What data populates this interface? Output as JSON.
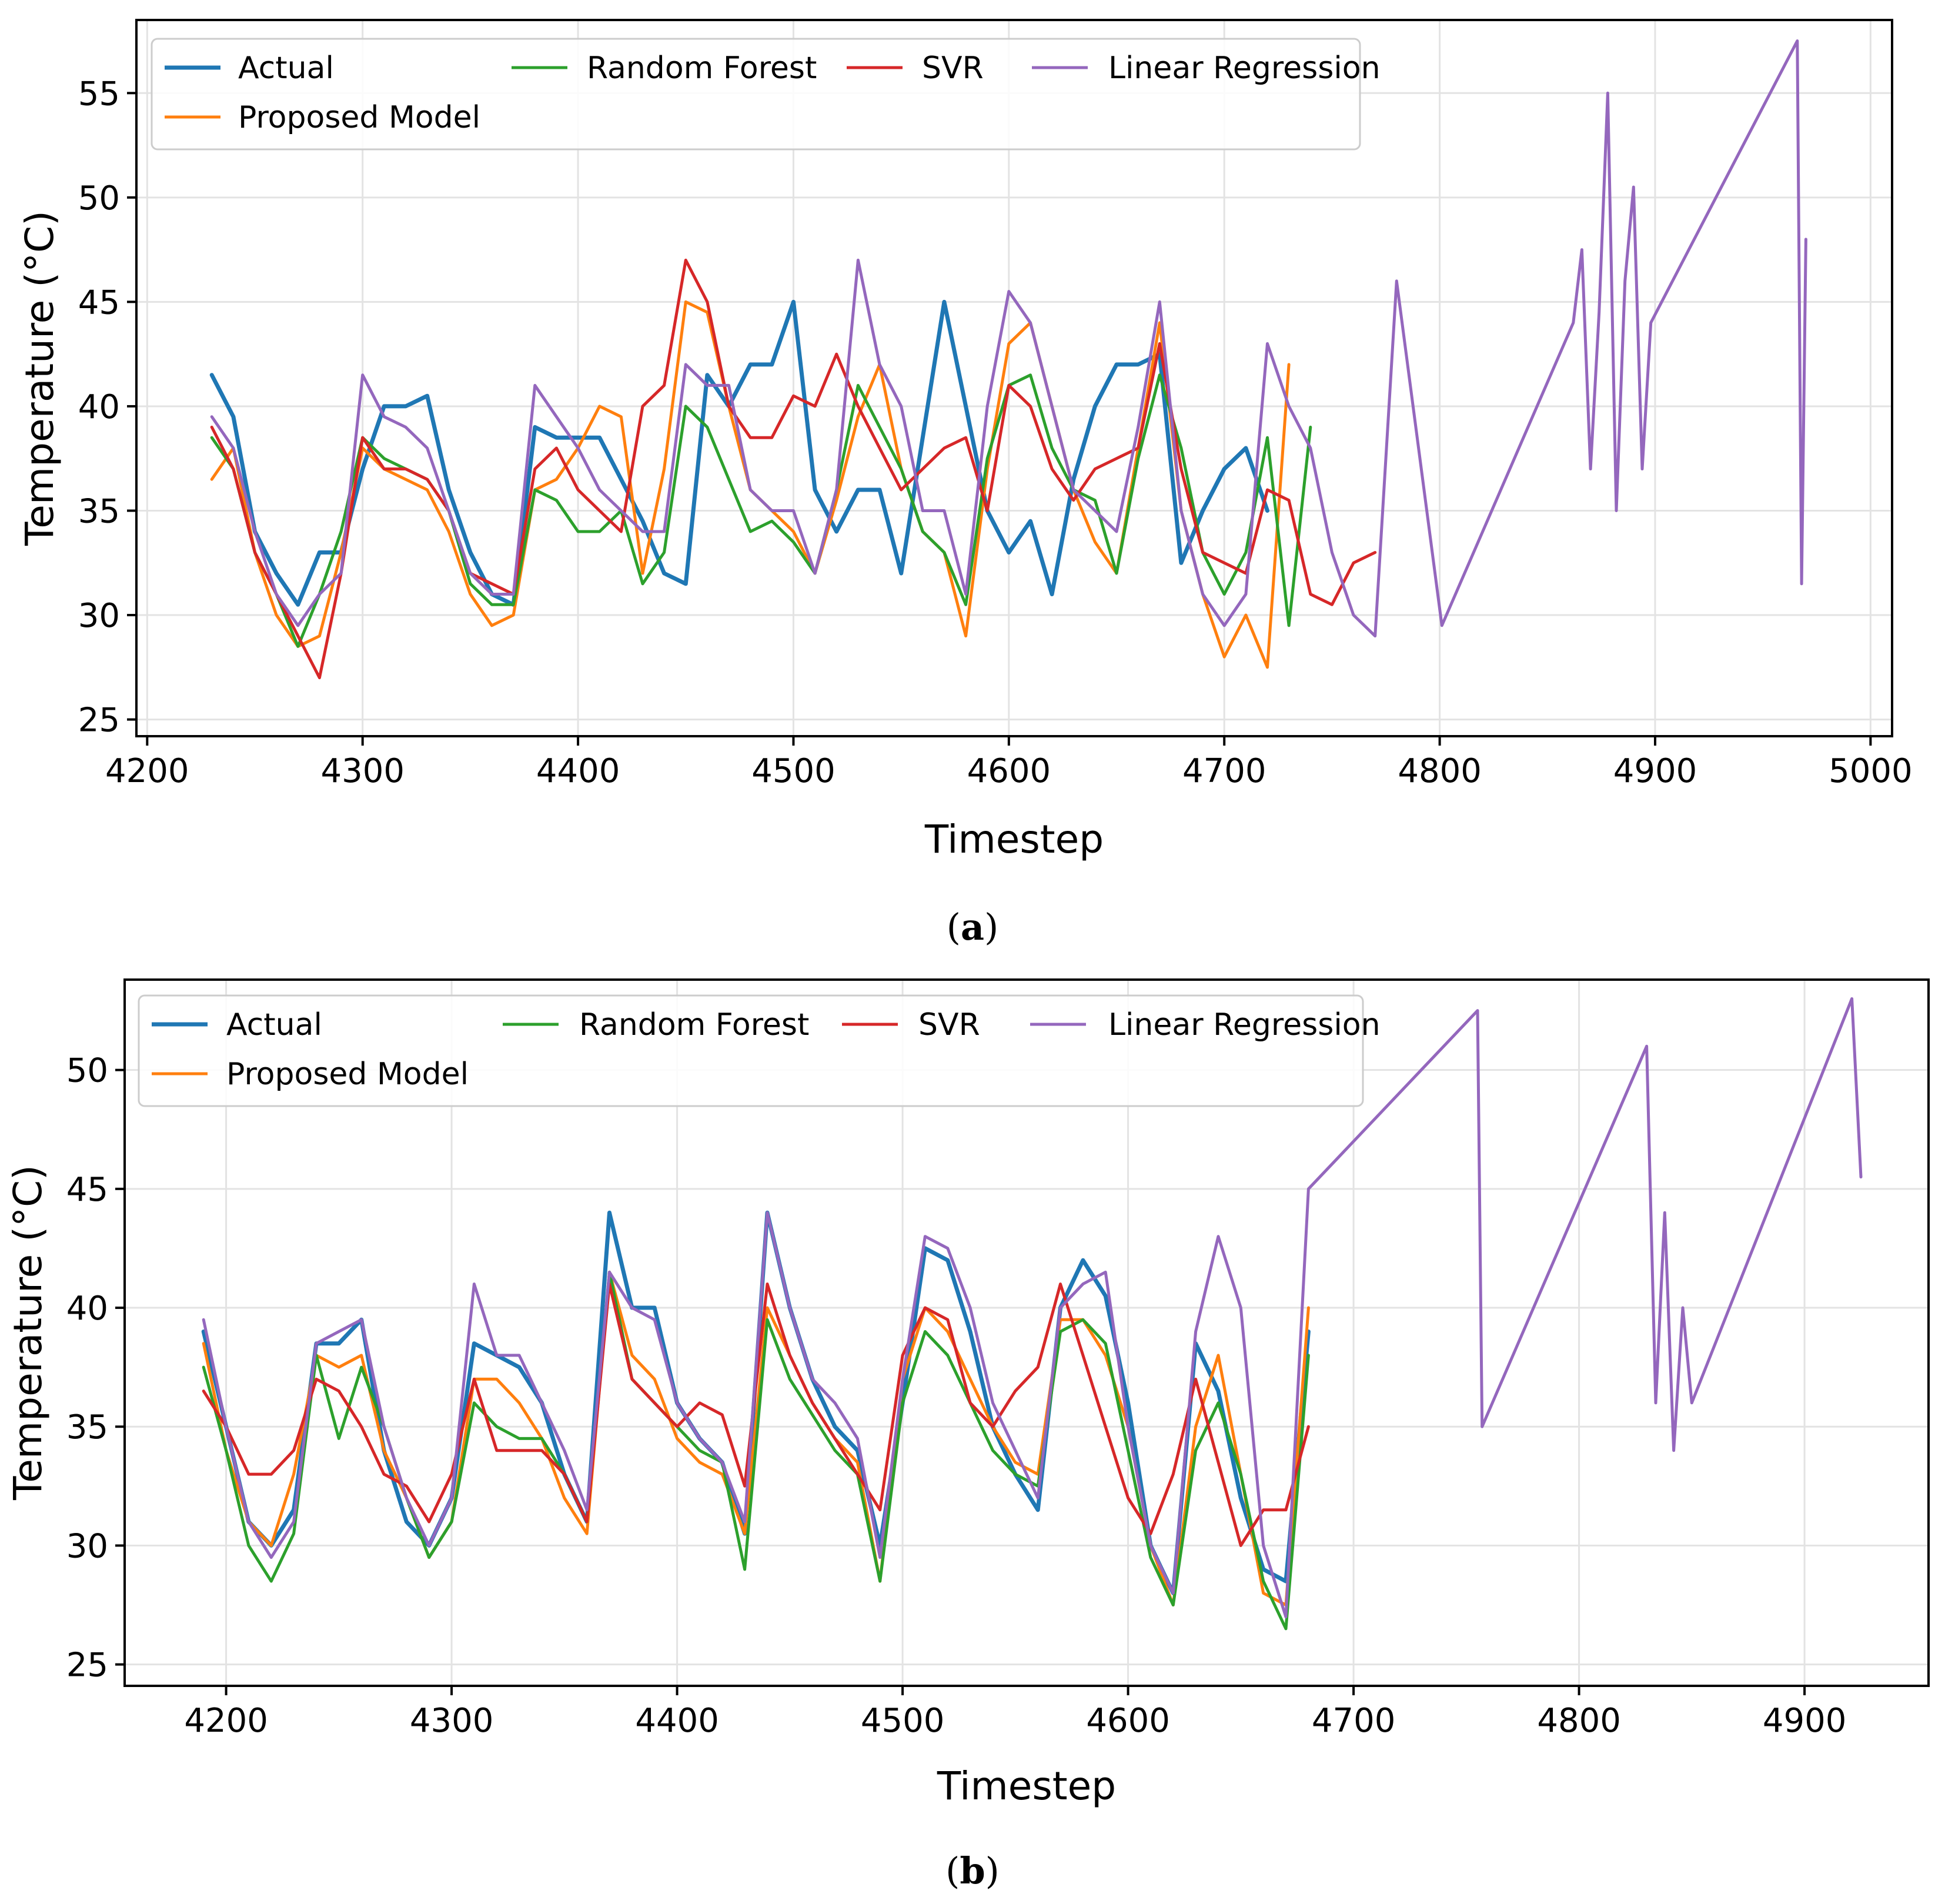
{
  "chart_data": [
    {
      "id": "a",
      "type": "line",
      "caption_open": "(",
      "caption_letter": "a",
      "caption_close": ")",
      "xlabel": "Timestep",
      "ylabel": "Temperature (°C)",
      "xlim": [
        4195,
        5010
      ],
      "ylim": [
        24.2,
        58.5
      ],
      "xticks": [
        4200,
        4300,
        4400,
        4500,
        4600,
        4700,
        4800,
        4900,
        5000
      ],
      "yticks": [
        25,
        30,
        35,
        40,
        45,
        50,
        55
      ],
      "grid": true,
      "legend_placement": "top-left",
      "x_start": 4230,
      "x_end": 4970,
      "x_step": 10,
      "series": [
        {
          "name": "Actual",
          "color": "#1f77b4",
          "width": 7,
          "values": [
            41.5,
            39.5,
            34,
            32,
            30.5,
            33,
            33,
            37,
            40,
            40,
            40.5,
            36,
            33,
            31,
            30.5,
            39,
            38.5,
            38.5,
            38.5,
            36.5,
            34.5,
            32,
            31.5,
            41.5,
            40,
            42,
            42,
            45,
            36,
            34,
            36,
            36,
            32,
            38.5,
            45,
            40,
            35,
            33,
            34.5,
            31,
            36.5,
            40,
            42,
            42,
            42.5,
            32.5,
            35,
            37,
            38,
            35
          ]
        },
        {
          "name": "Proposed Model",
          "color": "#ff7f0e",
          "width": 5,
          "values": [
            36.5,
            38,
            33,
            30,
            28.5,
            29,
            33,
            38,
            37,
            36.5,
            36,
            34,
            31,
            29.5,
            30,
            36,
            36.5,
            38,
            40,
            39.5,
            32,
            37,
            45,
            44.5,
            40,
            36,
            35,
            34,
            32,
            35.5,
            39.5,
            42,
            37,
            34,
            33,
            29,
            37,
            43,
            44,
            40,
            36,
            33.5,
            32,
            38,
            44,
            35,
            31,
            28,
            30,
            27.5,
            42
          ]
        },
        {
          "name": "Random Forest",
          "color": "#2ca02c",
          "width": 5,
          "values": [
            38.5,
            37,
            33,
            31,
            28.5,
            31,
            34,
            38.5,
            37.5,
            37,
            36.5,
            35,
            31.5,
            30.5,
            30.5,
            36,
            35.5,
            34,
            34,
            35,
            31.5,
            33,
            40,
            39,
            36.5,
            34,
            34.5,
            33.5,
            32,
            36,
            41,
            39,
            37,
            34,
            33,
            30.5,
            37.5,
            41,
            41.5,
            38,
            36,
            35.5,
            32,
            37.5,
            41.5,
            38,
            33,
            31,
            33,
            38.5,
            29.5,
            39
          ]
        },
        {
          "name": "SVR",
          "color": "#d62728",
          "width": 5,
          "values": [
            39,
            37,
            33,
            31,
            29,
            27,
            32,
            38.5,
            37,
            37,
            36.5,
            35,
            32,
            31.5,
            31,
            37,
            38,
            36,
            35,
            34,
            40,
            41,
            47,
            45,
            40,
            38.5,
            38.5,
            40.5,
            40,
            42.5,
            40,
            38,
            36,
            37,
            38,
            38.5,
            35,
            41,
            40,
            37,
            35.5,
            37,
            37.5,
            38,
            43,
            37,
            33,
            32.5,
            32,
            36,
            35.5,
            31,
            30.5,
            32.5,
            33
          ]
        },
        {
          "name": "Linear Regression",
          "color": "#9467bd",
          "width": 5,
          "values": [
            39.5,
            38,
            34,
            31,
            29.5,
            31,
            32,
            41.5,
            39.5,
            39,
            38,
            35,
            32,
            31,
            31,
            41,
            39.5,
            38,
            36,
            35,
            34,
            34,
            42,
            41,
            41,
            36,
            35,
            35,
            32,
            36,
            47,
            42,
            40,
            35,
            35,
            31,
            40,
            45.5,
            44,
            40,
            36,
            35,
            34,
            39,
            45,
            35,
            31,
            29.5,
            31,
            43,
            40,
            38,
            33,
            30,
            29,
            46
          ]
        }
      ]
    },
    {
      "id": "b",
      "type": "line",
      "caption_open": "(",
      "caption_letter": "b",
      "caption_close": ")",
      "xlabel": "Timestep",
      "ylabel": "Temperature (°C)",
      "xlim": [
        4155,
        4955
      ],
      "ylim": [
        24.1,
        53.8
      ],
      "xticks": [
        4200,
        4300,
        4400,
        4500,
        4600,
        4700,
        4800,
        4900
      ],
      "yticks": [
        25,
        30,
        35,
        40,
        45,
        50
      ],
      "grid": true,
      "legend_placement": "top-left",
      "x_start": 4190,
      "x_end": 4925,
      "x_step": 10,
      "series": [
        {
          "name": "Actual",
          "color": "#1f77b4",
          "width": 7,
          "values": [
            39,
            35,
            31,
            30,
            31.5,
            38.5,
            38.5,
            39.5,
            34,
            31,
            30,
            32,
            38.5,
            38,
            37.5,
            36,
            33,
            31,
            44,
            40,
            40,
            36,
            34.5,
            33.5,
            30.5,
            44,
            40,
            37,
            35,
            34,
            30,
            36,
            42.5,
            42,
            39,
            35,
            33,
            31.5,
            40,
            42,
            40.5,
            36,
            30,
            28,
            38.5,
            36.5,
            32,
            29,
            28.5,
            39
          ]
        },
        {
          "name": "Proposed Model",
          "color": "#ff7f0e",
          "width": 5,
          "values": [
            38.5,
            34,
            31,
            30,
            33,
            38,
            37.5,
            38,
            34,
            32,
            29.5,
            31,
            37,
            37,
            36,
            34.5,
            32,
            30.5,
            41.5,
            38,
            37,
            34.5,
            33.5,
            33,
            30.5,
            40,
            38,
            36,
            34.5,
            33.5,
            28.5,
            37,
            40,
            39,
            37,
            35,
            33.5,
            33,
            39.5,
            39.5,
            38,
            35,
            30,
            27.5,
            35,
            38,
            33,
            28,
            27.5,
            40
          ]
        },
        {
          "name": "Random Forest",
          "color": "#2ca02c",
          "width": 5,
          "values": [
            37.5,
            34,
            30,
            28.5,
            30.5,
            38,
            34.5,
            37.5,
            35,
            32,
            29.5,
            31,
            36,
            35,
            34.5,
            34.5,
            33,
            31,
            41.5,
            37,
            36,
            35,
            34,
            33.5,
            29,
            39.5,
            37,
            35.5,
            34,
            33,
            28.5,
            36,
            39,
            38,
            36,
            34,
            33,
            32.5,
            39,
            39.5,
            38.5,
            34,
            29.5,
            27.5,
            34,
            36,
            33,
            28.5,
            26.5,
            38
          ]
        },
        {
          "name": "SVR",
          "color": "#d62728",
          "width": 5,
          "values": [
            36.5,
            35,
            33,
            33,
            34,
            37,
            36.5,
            35,
            33,
            32.5,
            31,
            33,
            37,
            34,
            34,
            34,
            33,
            31,
            41,
            37,
            36,
            35,
            36,
            35.5,
            32.5,
            41,
            38,
            36,
            34.5,
            33,
            31.5,
            38,
            40,
            39.5,
            36,
            35,
            36.5,
            37.5,
            41,
            38,
            35,
            32,
            30.5,
            33,
            37,
            33.5,
            30,
            31.5,
            31.5,
            35
          ]
        },
        {
          "name": "Linear Regression",
          "color": "#9467bd",
          "width": 5,
          "values": [
            39.5,
            35,
            31,
            29.5,
            31,
            38.5,
            39,
            39.5,
            35,
            32,
            30,
            32,
            41,
            38,
            38,
            36,
            34,
            31.5,
            41.5,
            40,
            39.5,
            36,
            34.5,
            33.5,
            31,
            44,
            40,
            37,
            36,
            34.5,
            29.5,
            37,
            43,
            42.5,
            40,
            36,
            34,
            32,
            40,
            41,
            41.5,
            35,
            30,
            28,
            39,
            43,
            40,
            30,
            27,
            45
          ]
        }
      ]
    }
  ],
  "spikes": [
    {
      "chart": 0,
      "series": 4,
      "points": [
        [
          4801,
          29.5
        ],
        [
          4862,
          44
        ],
        [
          4866,
          47.5
        ],
        [
          4870,
          37
        ],
        [
          4874,
          44.5
        ],
        [
          4878,
          55
        ],
        [
          4882,
          35
        ],
        [
          4886,
          46
        ],
        [
          4890,
          50.5
        ],
        [
          4894,
          37
        ],
        [
          4898,
          44
        ],
        [
          4966,
          57.5
        ],
        [
          4968,
          31.5
        ],
        [
          4970,
          48
        ]
      ]
    },
    {
      "chart": 1,
      "series": 4,
      "points": [
        [
          4755,
          52.5
        ],
        [
          4757,
          35
        ],
        [
          4830,
          51
        ],
        [
          4834,
          36
        ],
        [
          4838,
          44
        ],
        [
          4842,
          34
        ],
        [
          4846,
          40
        ],
        [
          4850,
          36
        ],
        [
          4921,
          53
        ],
        [
          4925,
          45.5
        ]
      ]
    }
  ]
}
